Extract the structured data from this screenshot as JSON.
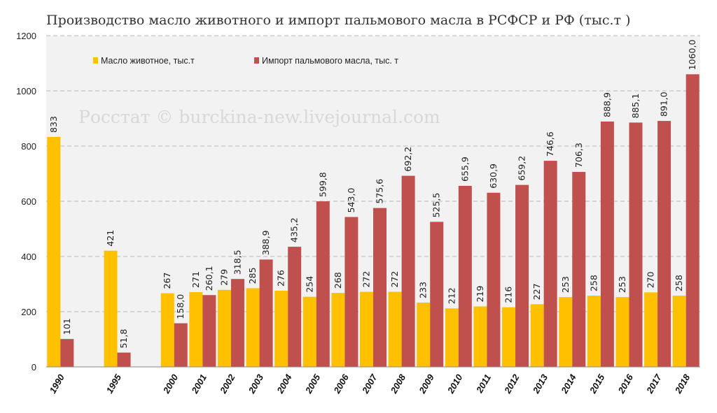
{
  "chart_data": {
    "type": "bar",
    "title": "Производство масло животного и импорт пальмового масла в РСФСР и РФ (тыс.т )",
    "watermark": "Росстат © burckina-new.livejournal.com",
    "categories": [
      "1990",
      "",
      "1995",
      "",
      "2000",
      "2001",
      "2002",
      "2003",
      "2004",
      "2005",
      "2006",
      "2007",
      "2008",
      "2009",
      "2010",
      "2011",
      "2012",
      "2013",
      "2014",
      "2015",
      "2016",
      "2017",
      "2018"
    ],
    "ylim": [
      0,
      1200
    ],
    "yticks": [
      0,
      200,
      400,
      600,
      800,
      1000,
      1200
    ],
    "grid": true,
    "legend_position": "top-left",
    "series": [
      {
        "name": "Масло животное, тыс.т",
        "color": "#ffc000",
        "values": [
          833,
          null,
          421,
          null,
          267,
          271,
          279,
          285,
          276,
          254,
          268,
          272,
          272,
          233,
          212,
          219,
          216,
          227,
          253,
          258,
          253,
          270,
          258
        ],
        "labels": [
          "833",
          "",
          "421",
          "",
          "267",
          "271",
          "279",
          "285",
          "276",
          "254",
          "268",
          "272",
          "272",
          "233",
          "212",
          "219",
          "216",
          "227",
          "253",
          "258",
          "253",
          "270",
          "258"
        ]
      },
      {
        "name": "Импорт пальмового масла, тыс. т",
        "color": "#c0504d",
        "values": [
          101,
          null,
          51.8,
          null,
          158.0,
          260.1,
          318.5,
          388.9,
          435.2,
          599.8,
          543.0,
          575.6,
          692.2,
          525.5,
          655.9,
          630.9,
          659.2,
          746.6,
          706.3,
          888.9,
          885.1,
          891.0,
          1060.0
        ],
        "labels": [
          "101",
          "",
          "51,8",
          "",
          "158,0",
          "260,1",
          "318,5",
          "388,9",
          "435,2",
          "599,8",
          "543,0",
          "575,6",
          "692,2",
          "525,5",
          "655,9",
          "630,9",
          "659,2",
          "746,6",
          "706,3",
          "888,9",
          "885,1",
          "891,0",
          "1060,0"
        ]
      }
    ]
  }
}
